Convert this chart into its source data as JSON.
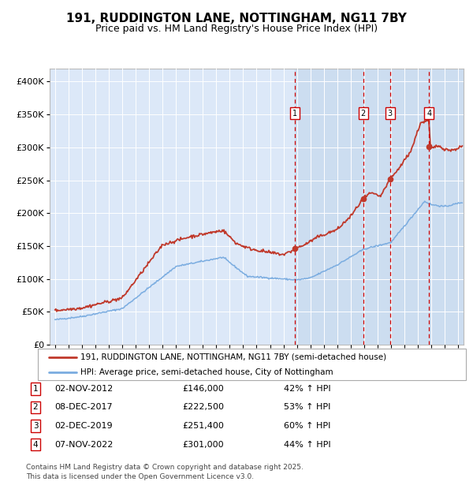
{
  "title": "191, RUDDINGTON LANE, NOTTINGHAM, NG11 7BY",
  "subtitle": "Price paid vs. HM Land Registry's House Price Index (HPI)",
  "footer": "Contains HM Land Registry data © Crown copyright and database right 2025.\nThis data is licensed under the Open Government Licence v3.0.",
  "legend_line1": "191, RUDDINGTON LANE, NOTTINGHAM, NG11 7BY (semi-detached house)",
  "legend_line2": "HPI: Average price, semi-detached house, City of Nottingham",
  "transactions": [
    {
      "num": 1,
      "date": "02-NOV-2012",
      "year": 2012.84,
      "price": 146000,
      "pct": "42% ↑ HPI"
    },
    {
      "num": 2,
      "date": "08-DEC-2017",
      "year": 2017.93,
      "price": 222500,
      "pct": "53% ↑ HPI"
    },
    {
      "num": 3,
      "date": "02-DEC-2019",
      "year": 2019.92,
      "price": 251400,
      "pct": "60% ↑ HPI"
    },
    {
      "num": 4,
      "date": "07-NOV-2022",
      "year": 2022.84,
      "price": 301000,
      "pct": "44% ↑ HPI"
    }
  ],
  "hpi_color": "#7aace0",
  "price_color": "#c0392b",
  "background_plot": "#dce8f8",
  "shade_color": "#ccddf0",
  "grid_color": "#ffffff",
  "ylim": [
    0,
    420000
  ],
  "yticks": [
    0,
    50000,
    100000,
    150000,
    200000,
    250000,
    300000,
    350000,
    400000
  ],
  "xlim_start": 1994.6,
  "xlim_end": 2025.4,
  "shade_start": 2012.84
}
